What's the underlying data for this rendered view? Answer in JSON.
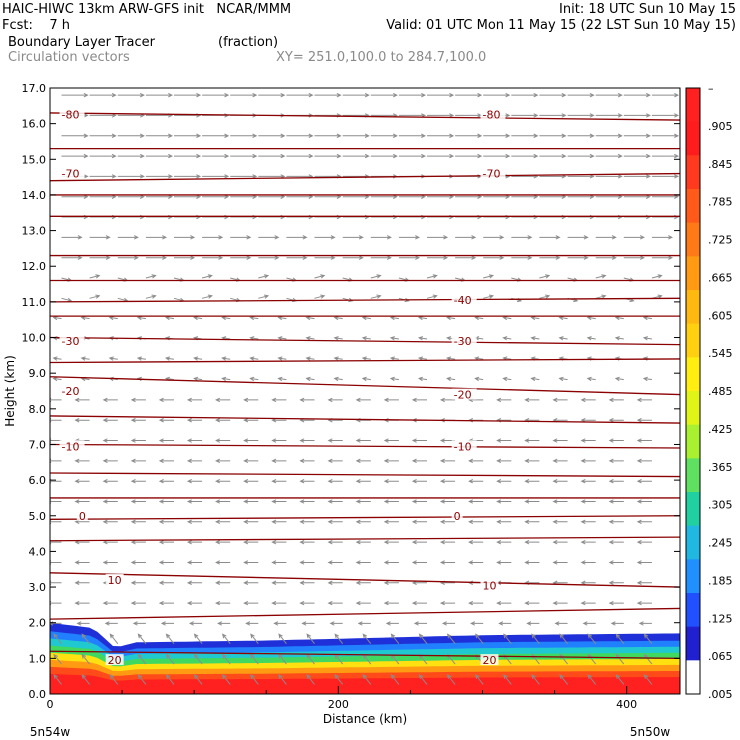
{
  "header": {
    "line1_left": "HAIC-HIWC 13km ARW-GFS init   NCAR/MMM",
    "line1_right": "Init: 18 UTC Sun 10 May 15",
    "line2_left": "Fcst:    7 h",
    "line2_right": "Valid: 01 UTC Mon 11 May 15 (22 LST Sun 10 May 15)",
    "line3_left": "Boundary Layer Tracer",
    "line3_units": "(fraction)",
    "line4_left": "Circulation vectors",
    "line4_xy": "XY= 251.0,100.0 to 284.7,100.0"
  },
  "chart_data": {
    "type": "heatmap",
    "xlabel": "Distance (km)",
    "ylabel": "Height (km)",
    "xlim": [
      0,
      437
    ],
    "ylim": [
      0,
      17
    ],
    "x_ticks": [
      0,
      200,
      400
    ],
    "x_tick_labels": [
      "0",
      "200",
      "400"
    ],
    "y_ticks": [
      0,
      1,
      2,
      3,
      4,
      5,
      6,
      7,
      8,
      9,
      10,
      11,
      12,
      13,
      14,
      15,
      16,
      17
    ],
    "y_tick_labels": [
      "0.0",
      "1.0",
      "2.0",
      "3.0",
      "4.0",
      "5.0",
      "6.0",
      "7.0",
      "8.0",
      "9.0",
      "10.0",
      "11.0",
      "12.0",
      "13.0",
      "14.0",
      "15.0",
      "16.0",
      "17.0"
    ],
    "x_endpoint_labels": [
      "5n54w",
      "5n50w"
    ],
    "colorbar": {
      "labels": [
        "–",
        ".905",
        ".845",
        ".785",
        ".725",
        ".665",
        ".605",
        ".545",
        ".485",
        ".425",
        ".365",
        ".305",
        ".245",
        ".185",
        ".125",
        ".065",
        ".005"
      ],
      "colors": [
        "#ff2020",
        "#ff1c1c",
        "#ff3a1e",
        "#ff5a1a",
        "#ff7a16",
        "#ff9a12",
        "#ffb810",
        "#ffd010",
        "#ffee10",
        "#e0f418",
        "#a8f030",
        "#60e060",
        "#20d0a0",
        "#20b8e0",
        "#2090ff",
        "#2050ff",
        "#2020d0",
        "#ffffff"
      ]
    },
    "tracer_layer": {
      "top_profile": [
        [
          0,
          2.0
        ],
        [
          30,
          1.85
        ],
        [
          45,
          1.3
        ],
        [
          60,
          1.45
        ],
        [
          150,
          1.5
        ],
        [
          300,
          1.65
        ],
        [
          437,
          1.7
        ]
      ],
      "bands": [
        {
          "depth_frac": 0.0,
          "value": 0.1
        },
        {
          "depth_frac": 0.15,
          "value": 0.3
        },
        {
          "depth_frac": 0.3,
          "value": 0.55
        },
        {
          "depth_frac": 0.45,
          "value": 0.75
        },
        {
          "depth_frac": 0.6,
          "value": 0.9
        },
        {
          "depth_frac": 0.75,
          "value": 1.0
        }
      ]
    },
    "isotherms": {
      "lines": [
        {
          "label": "-80",
          "y": [
            16.3,
            16.1
          ]
        },
        {
          "label": "",
          "y": [
            15.3,
            15.3
          ]
        },
        {
          "label": "-70",
          "y": [
            14.4,
            14.6
          ]
        },
        {
          "label": "",
          "y": [
            14.0,
            14.0
          ]
        },
        {
          "label": "",
          "y": [
            13.4,
            13.4
          ]
        },
        {
          "label": "",
          "y": [
            12.3,
            12.3
          ]
        },
        {
          "label": "",
          "y": [
            11.6,
            11.6
          ]
        },
        {
          "label": "-40",
          "y": [
            11.0,
            11.1
          ]
        },
        {
          "label": "",
          "y": [
            10.6,
            10.6
          ]
        },
        {
          "label": "-30",
          "y": [
            10.0,
            9.8
          ]
        },
        {
          "label": "",
          "y": [
            9.3,
            9.4
          ]
        },
        {
          "label": "-20",
          "y": [
            8.9,
            8.4
          ]
        },
        {
          "label": "",
          "y": [
            7.8,
            7.6
          ]
        },
        {
          "label": "-10",
          "y": [
            7.0,
            6.9
          ]
        },
        {
          "label": "",
          "y": [
            6.2,
            6.1
          ]
        },
        {
          "label": "",
          "y": [
            5.5,
            5.5
          ]
        },
        {
          "label": "0",
          "y": [
            4.9,
            5.0
          ]
        },
        {
          "label": "",
          "y": [
            4.3,
            4.4
          ]
        },
        {
          "label": "10",
          "y": [
            3.4,
            3.0
          ]
        },
        {
          "label": "",
          "y": [
            2.1,
            2.4
          ]
        },
        {
          "label": "20",
          "y": [
            1.2,
            1.0
          ]
        }
      ],
      "label_positions": {
        "-80": [
          [
            8,
            16.25
          ],
          [
            300,
            16.25
          ]
        ],
        "-70": [
          [
            8,
            14.6
          ],
          [
            300,
            14.6
          ]
        ],
        "-40": [
          [
            280,
            11.05
          ]
        ],
        "-30": [
          [
            8,
            9.9
          ],
          [
            280,
            9.9
          ]
        ],
        "-20": [
          [
            8,
            8.5
          ],
          [
            280,
            8.4
          ]
        ],
        "-10": [
          [
            8,
            6.95
          ],
          [
            280,
            6.95
          ]
        ],
        "0": [
          [
            20,
            5.0
          ],
          [
            280,
            5.0
          ]
        ],
        "10": [
          [
            40,
            3.2
          ],
          [
            300,
            3.05
          ]
        ],
        "20": [
          [
            40,
            0.95
          ],
          [
            300,
            0.95
          ]
        ]
      }
    },
    "vectors": {
      "upper_speed": 1.0,
      "lower_speed": 0.6
    }
  }
}
